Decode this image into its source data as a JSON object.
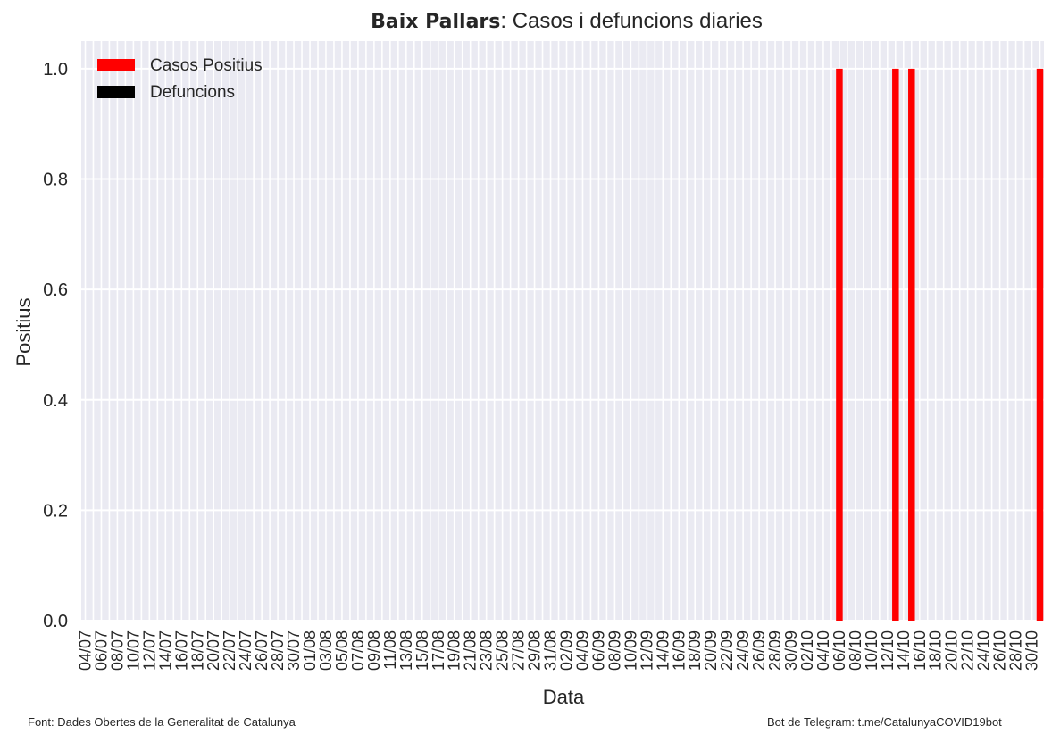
{
  "chart_data": {
    "type": "bar",
    "title_bold": "Baix Pallars",
    "title_rest": ": Casos i defuncions diaries",
    "xlabel": "Data",
    "ylabel": "Positius",
    "ylim": [
      0,
      1.05
    ],
    "yticks": [
      "0.0",
      "0.2",
      "0.4",
      "0.6",
      "0.8",
      "1.0"
    ],
    "grid": true,
    "legend_position": "top-left",
    "series": [
      {
        "name": "Casos Positius",
        "color": "#ff0000",
        "values_by_label": {
          "06/10": 1,
          "13/10": 1,
          "15/10": 1,
          "31/10": 1
        }
      },
      {
        "name": "Defuncions",
        "color": "#000000",
        "values_by_label": {}
      }
    ],
    "x_start": "04/07",
    "x_end": "31/10",
    "tick_every_days": 2,
    "tick_labels": [
      "04/07",
      "06/07",
      "08/07",
      "10/07",
      "12/07",
      "14/07",
      "16/07",
      "18/07",
      "20/07",
      "22/07",
      "24/07",
      "26/07",
      "28/07",
      "30/07",
      "01/08",
      "03/08",
      "05/08",
      "07/08",
      "09/08",
      "11/08",
      "13/08",
      "15/08",
      "17/08",
      "19/08",
      "21/08",
      "23/08",
      "25/08",
      "27/08",
      "29/08",
      "31/08",
      "02/09",
      "04/09",
      "06/09",
      "08/09",
      "10/09",
      "12/09",
      "14/09",
      "16/09",
      "18/09",
      "20/09",
      "22/09",
      "24/09",
      "26/09",
      "28/09",
      "30/09",
      "02/10",
      "04/10",
      "06/10",
      "08/10",
      "10/10",
      "12/10",
      "14/10",
      "16/10",
      "18/10",
      "20/10",
      "22/10",
      "24/10",
      "26/10",
      "28/10",
      "30/10"
    ]
  },
  "footer": {
    "left": "Font: Dades Obertes de la Generalitat de Catalunya",
    "right": "Bot de Telegram: t.me/CatalunyaCOVID19bot"
  }
}
